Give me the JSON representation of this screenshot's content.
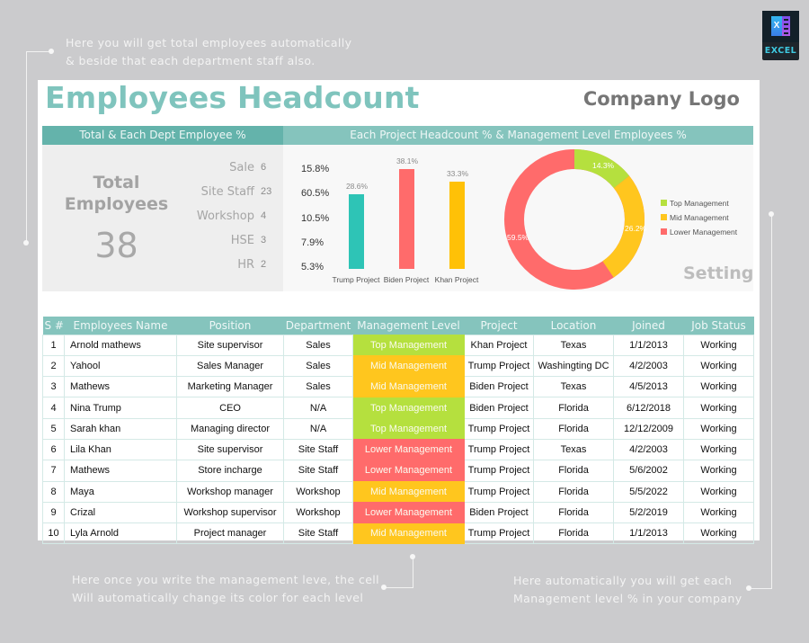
{
  "annotations": {
    "top_left": [
      "Here you will get total employees automatically",
      "& beside that each department staff also."
    ],
    "bottom_left": [
      "Here once you write the management leve, the cell",
      "Will automatically change its color for each level"
    ],
    "bottom_right": [
      "Here automatically you will get each",
      "Management level % in your company"
    ]
  },
  "badge": {
    "icon": "excel-icon",
    "letter": "X",
    "label": "EXCEL"
  },
  "header": {
    "title": "Employees Headcount",
    "logo": "Company Logo"
  },
  "bands": {
    "left": "Total & Each Dept Employee %",
    "right": "Each Project Headcount % & Management Level Employees %"
  },
  "summary": {
    "total_label_1": "Total",
    "total_label_2": "Employees",
    "total_value": "38",
    "departments": [
      {
        "name": "Sale",
        "count": "6",
        "pct": "15.8%"
      },
      {
        "name": "Site Staff",
        "count": "23",
        "pct": "60.5%"
      },
      {
        "name": "Workshop",
        "count": "4",
        "pct": "10.5%"
      },
      {
        "name": "HSE",
        "count": "3",
        "pct": "7.9%"
      },
      {
        "name": "HR",
        "count": "2",
        "pct": "5.3%"
      }
    ]
  },
  "chart_data": [
    {
      "type": "bar",
      "title": "Each Project Headcount %",
      "categories": [
        "Trump Project",
        "Biden Project",
        "Khan Project"
      ],
      "values": [
        28.6,
        38.1,
        33.3
      ],
      "labels": [
        "28.6%",
        "38.1%",
        "33.3%"
      ],
      "colors": [
        "#2ec4b6",
        "#ff6b6b",
        "#ffc107"
      ],
      "xlabel": "",
      "ylabel": "",
      "grid": false
    },
    {
      "type": "pie",
      "subtype": "donut",
      "title": "Management Level Employees %",
      "categories": [
        "Top Management",
        "Mid Management",
        "Lower Management"
      ],
      "values": [
        14.3,
        26.2,
        59.5
      ],
      "labels": [
        "14.3%",
        "26.2%",
        "59.5%"
      ],
      "colors": [
        "#b5e03e",
        "#ffc61e",
        "#ff6b6b"
      ],
      "legend_position": "right"
    }
  ],
  "setting_label": "Setting",
  "table": {
    "headers": [
      "S #",
      "Employees Name",
      "Position",
      "Department",
      "Management Level",
      "Project",
      "Location",
      "Joined",
      "Job Status"
    ],
    "rows": [
      [
        "1",
        "Arnold mathews",
        "Site supervisor",
        "Sales",
        "Top Management",
        "Khan Project",
        "Texas",
        "1/1/2013",
        "Working"
      ],
      [
        "2",
        "Yahool",
        "Sales Manager",
        "Sales",
        "Mid Management",
        "Trump Project",
        "Washingting DC",
        "4/2/2003",
        "Working"
      ],
      [
        "3",
        "Mathews",
        "Marketing Manager",
        "Sales",
        "Mid Management",
        "Biden Project",
        "Texas",
        "4/5/2013",
        "Working"
      ],
      [
        "4",
        "Nina Trump",
        "CEO",
        "N/A",
        "Top Management",
        "Biden Project",
        "Florida",
        "6/12/2018",
        "Working"
      ],
      [
        "5",
        "Sarah khan",
        "Managing director",
        "N/A",
        "Top Management",
        "Trump Project",
        "Florida",
        "12/12/2009",
        "Working"
      ],
      [
        "6",
        "Lila Khan",
        "Site supervisor",
        "Site Staff",
        "Lower Management",
        "Trump Project",
        "Texas",
        "4/2/2003",
        "Working"
      ],
      [
        "7",
        "Mathews",
        "Store incharge",
        "Site Staff",
        "Lower Management",
        "Trump Project",
        "Florida",
        "5/6/2002",
        "Working"
      ],
      [
        "8",
        "Maya",
        "Workshop manager",
        "Workshop",
        "Mid Management",
        "Trump Project",
        "Florida",
        "5/5/2022",
        "Working"
      ],
      [
        "9",
        "Crizal",
        "Workshop supervisor",
        "Workshop",
        "Lower Management",
        "Biden Project",
        "Florida",
        "5/2/2019",
        "Working"
      ],
      [
        "10",
        "Lyla Arnold",
        "Project manager",
        "Site Staff",
        "Mid Management",
        "Trump Project",
        "Florida",
        "1/1/2013",
        "Working"
      ]
    ]
  },
  "level_colors": {
    "Top Management": "#b5e03e",
    "Mid Management": "#ffc61e",
    "Lower Management": "#ff6b6b"
  }
}
